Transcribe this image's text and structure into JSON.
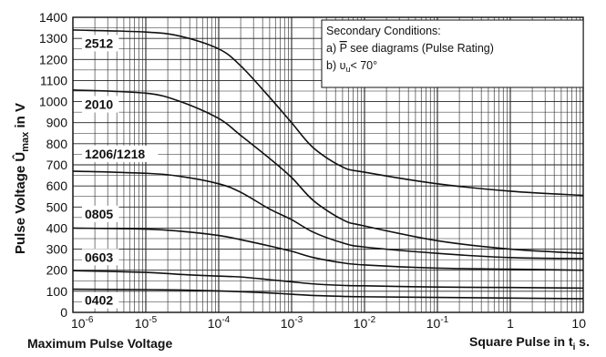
{
  "chart_data": {
    "type": "line",
    "title": "Maximum Pulse Voltage",
    "xlabel": "Square Pulse in t",
    "xlabel_sub": "i",
    "xlabel_suffix": " s.",
    "ylabel": "Pulse Voltage Û",
    "ylabel_sub": "max",
    "ylabel_suffix": " in V",
    "x_scale": "log",
    "xlim": [
      1e-06,
      10
    ],
    "ylim": [
      0,
      1400
    ],
    "grid": true,
    "x_ticks": [
      {
        "base": "10",
        "exp": "-6"
      },
      {
        "base": "10",
        "exp": "-5"
      },
      {
        "base": "10",
        "exp": "-4"
      },
      {
        "base": "10",
        "exp": "-3"
      },
      {
        "base": "10",
        "exp": "-2"
      },
      {
        "base": "10",
        "exp": "-1"
      },
      {
        "base": "1",
        "exp": ""
      },
      {
        "base": "10",
        "exp": ""
      }
    ],
    "y_ticks": [
      "0",
      "100",
      "200",
      "300",
      "400",
      "500",
      "600",
      "700",
      "800",
      "900",
      "1000",
      "1100",
      "1200",
      "1300",
      "1400"
    ],
    "annotation": {
      "title": "Secondary Conditions:",
      "line1_prefix": "a) ",
      "line1_symbol": "P",
      "line1_rest": " see diagrams (Pulse Rating)",
      "line2_prefix": "b) υ",
      "line2_sub": "u",
      "line2_rest": "< 70°"
    },
    "series": [
      {
        "name": "2512",
        "x": [
          1e-06,
          1e-05,
          3e-05,
          0.0001,
          0.0002,
          0.0005,
          0.001,
          0.002,
          0.005,
          0.01,
          0.1,
          1,
          10
        ],
        "values": [
          1340,
          1330,
          1310,
          1250,
          1170,
          1020,
          900,
          780,
          690,
          665,
          610,
          575,
          555
        ]
      },
      {
        "name": "2010",
        "x": [
          1e-06,
          1e-05,
          3e-05,
          0.0001,
          0.0002,
          0.0005,
          0.001,
          0.002,
          0.005,
          0.01,
          0.1,
          1,
          10
        ],
        "values": [
          1055,
          1040,
          1000,
          920,
          840,
          730,
          640,
          530,
          440,
          410,
          340,
          300,
          280
        ]
      },
      {
        "name": "1206/1218",
        "x": [
          1e-06,
          1e-05,
          3e-05,
          0.0001,
          0.0002,
          0.0005,
          0.001,
          0.002,
          0.005,
          0.01,
          0.1,
          1,
          10
        ],
        "values": [
          670,
          660,
          645,
          610,
          570,
          490,
          440,
          380,
          330,
          310,
          280,
          260,
          255
        ]
      },
      {
        "name": "0805",
        "x": [
          1e-06,
          1e-05,
          3e-05,
          0.0001,
          0.0002,
          0.0005,
          0.001,
          0.002,
          0.005,
          0.01,
          0.1,
          1,
          10
        ],
        "values": [
          400,
          395,
          385,
          365,
          345,
          315,
          290,
          260,
          235,
          225,
          210,
          205,
          200
        ]
      },
      {
        "name": "0603",
        "x": [
          1e-06,
          1e-05,
          3e-05,
          0.0001,
          0.0002,
          0.0005,
          0.001,
          0.002,
          0.005,
          0.01,
          0.1,
          1,
          10
        ],
        "values": [
          198,
          190,
          180,
          172,
          168,
          155,
          145,
          135,
          128,
          126,
          120,
          118,
          115
        ]
      },
      {
        "name": "0402",
        "x": [
          1e-06,
          1e-05,
          3e-05,
          0.0001,
          0.0002,
          0.0005,
          0.001,
          0.002,
          0.005,
          0.01,
          0.1,
          1,
          10
        ],
        "values": [
          110,
          108,
          106,
          102,
          98,
          92,
          86,
          80,
          76,
          74,
          71,
          68,
          65
        ]
      }
    ]
  }
}
